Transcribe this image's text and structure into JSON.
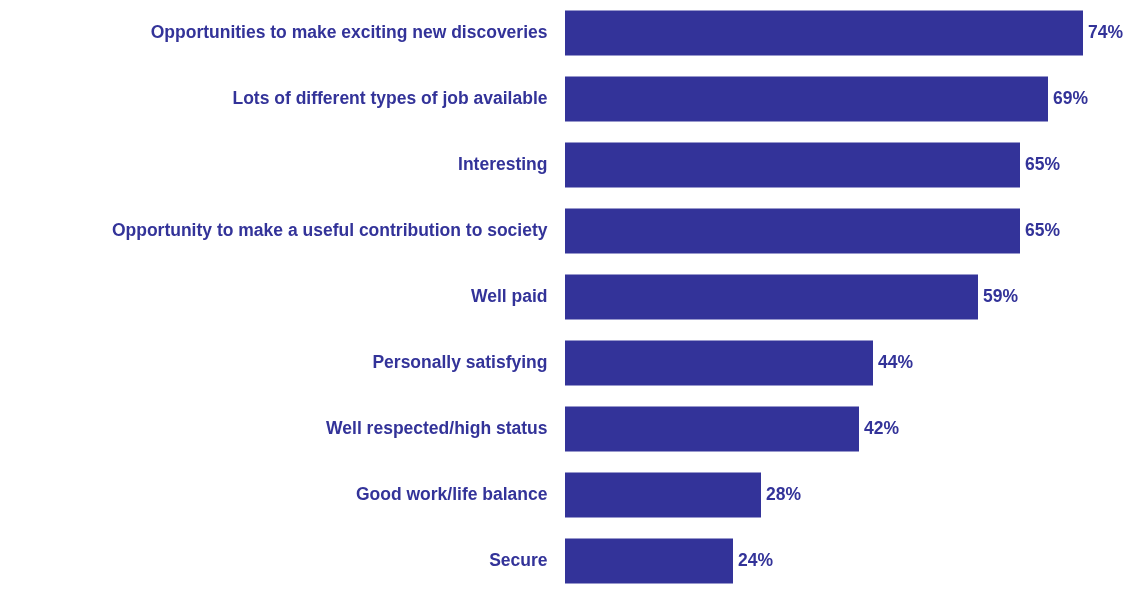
{
  "chart_data": {
    "type": "bar",
    "orientation": "horizontal",
    "categories": [
      "Opportunities to make exciting new discoveries",
      "Lots of different types of job available",
      "Interesting",
      "Opportunity to make a useful contribution to society",
      "Well paid",
      "Personally satisfying",
      "Well respected/high status",
      "Good work/life balance",
      "Secure"
    ],
    "values": [
      74,
      69,
      65,
      65,
      59,
      44,
      42,
      28,
      24
    ],
    "value_labels": [
      "74%",
      "69%",
      "65%",
      "65%",
      "59%",
      "44%",
      "42%",
      "28%",
      "24%"
    ],
    "color": "#333399",
    "tick_labels": "y"
  }
}
